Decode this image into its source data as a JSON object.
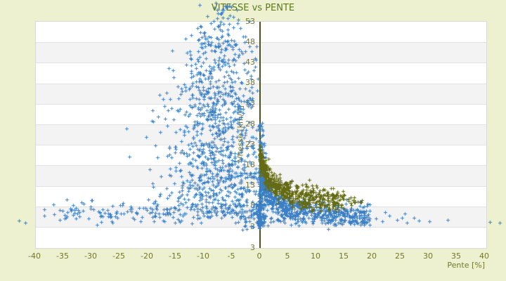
{
  "colors": {
    "background": "#edf1d0",
    "plot_background": "#ffffff",
    "band_fill": "#f3f3f3",
    "gridline": "#e2e2e2",
    "plot_border": "#d9d9d9",
    "zero_axis_line": "#4c531d",
    "tick_text": "#72762f",
    "title_text": "#5c7b16",
    "series_blue": "#3b80c6",
    "series_olive": "#646b12"
  },
  "chart_data": {
    "type": "scatter",
    "title": "VITESSE vs PENTE",
    "xlabel": "Pente [%]",
    "ylabel": "Vitesse [km/h]",
    "marker": "plus",
    "grid": "horizontal-bands",
    "legend": "none",
    "x_ticks": [
      -40,
      -35,
      -30,
      -25,
      -20,
      -15,
      -10,
      -5,
      0,
      5,
      10,
      15,
      20,
      25,
      30,
      35,
      40
    ],
    "y_ticks": [
      53,
      48,
      43,
      38,
      33,
      28,
      23,
      18,
      13,
      8,
      3
    ],
    "y_axis_edge_label": "3",
    "xlim": [
      -39.8,
      40.4
    ],
    "ylim": [
      -2.1,
      58.3
    ],
    "seed": 11,
    "series": [
      {
        "id": "blue",
        "color_key": "series_blue",
        "clusters": [
          {
            "kind": "plume",
            "count": 640,
            "muX": -7.6,
            "v0": 58.3,
            "v1": 19.5,
            "vPow": 0.62,
            "sigma0": 1.5,
            "sigmaGrow": 0.115,
            "xMax": -0.2
          },
          {
            "kind": "plume",
            "count": 330,
            "muX": -6.5,
            "v0": 19.5,
            "v1": 7.5,
            "vPow": 1.0,
            "sigma0": 4.5,
            "sigmaGrow": 0.12,
            "xMax": -0.1
          },
          {
            "kind": "band",
            "count": 200,
            "x0": -38.5,
            "x1": -4.5,
            "xPow": 0.7,
            "vMu": 6.3,
            "vSig": 1.25
          },
          {
            "kind": "band",
            "count": 60,
            "x0": -4.5,
            "x1": -0.2,
            "xPow": 0.8,
            "vMu": 6.0,
            "vSig": 1.5
          },
          {
            "kind": "spike",
            "count": 230,
            "x0": -0.05,
            "xSig": 0.55,
            "vBase": 3.2,
            "vAmp": 25,
            "vPow": 1.9
          },
          {
            "kind": "band",
            "count": 70,
            "x0": -0.06,
            "x1": 0.12,
            "xPow": 1.0,
            "vMu": 5.5,
            "vSig": 1.6
          },
          {
            "kind": "decay",
            "count": 680,
            "x0": 0.25,
            "x1": 19.8,
            "xPow": 2.0,
            "base": 4.3,
            "amp": 12.5,
            "k": 0.5,
            "sig": 1.6,
            "vMin": 3.3
          },
          {
            "kind": "band",
            "count": 95,
            "x0": 0.8,
            "x1": 19.5,
            "xPow": 1.0,
            "vMu": 5.0,
            "vSig": 0.85
          },
          {
            "kind": "points",
            "pts": [
              [
                20.8,
                4.9
              ],
              [
                21.9,
                4.2
              ],
              [
                23.2,
                5.6
              ],
              [
                24.5,
                4.6
              ],
              [
                25.4,
                5.1
              ],
              [
                26.3,
                3.9
              ],
              [
                28.4,
                4.4
              ],
              [
                30.3,
                4.2
              ],
              [
                33.5,
                4.5
              ],
              [
                25.9,
                6.1
              ],
              [
                22.4,
                6.4
              ],
              [
                27.6,
                5.0
              ],
              [
                41.1,
                4.1
              ],
              [
                42.8,
                3.9
              ],
              [
                -42.7,
                4.3
              ],
              [
                -41.6,
                3.9
              ]
            ]
          }
        ]
      },
      {
        "id": "olive",
        "color_key": "series_olive",
        "clusters": [
          {
            "kind": "decay",
            "count": 620,
            "x0": 0.15,
            "x1": 15.3,
            "xPow": 1.85,
            "base": 7.4,
            "amp": 13.5,
            "k": 0.48,
            "sig": 1.5,
            "vMin": 6.4
          },
          {
            "kind": "band",
            "count": 14,
            "x0": 15.3,
            "x1": 18.6,
            "xPow": 1.0,
            "vMu": 9.3,
            "vSig": 0.8
          }
        ]
      }
    ]
  }
}
